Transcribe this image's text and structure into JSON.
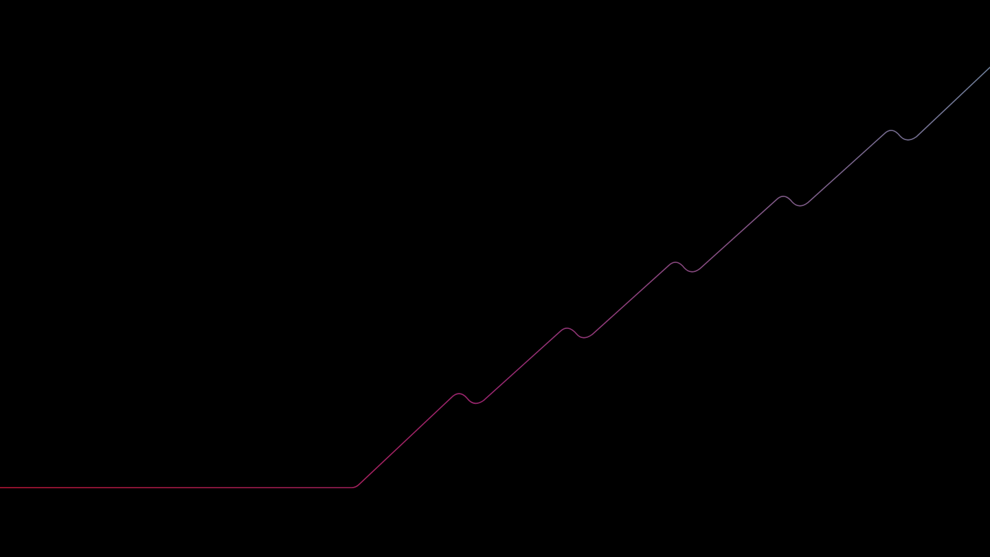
{
  "background": "#000000",
  "line": {
    "gradient_start_color": "#c0163a",
    "gradient_mid_color": "#9a2670",
    "gradient_end_color": "#6f7f9a",
    "bump_count": 5
  }
}
